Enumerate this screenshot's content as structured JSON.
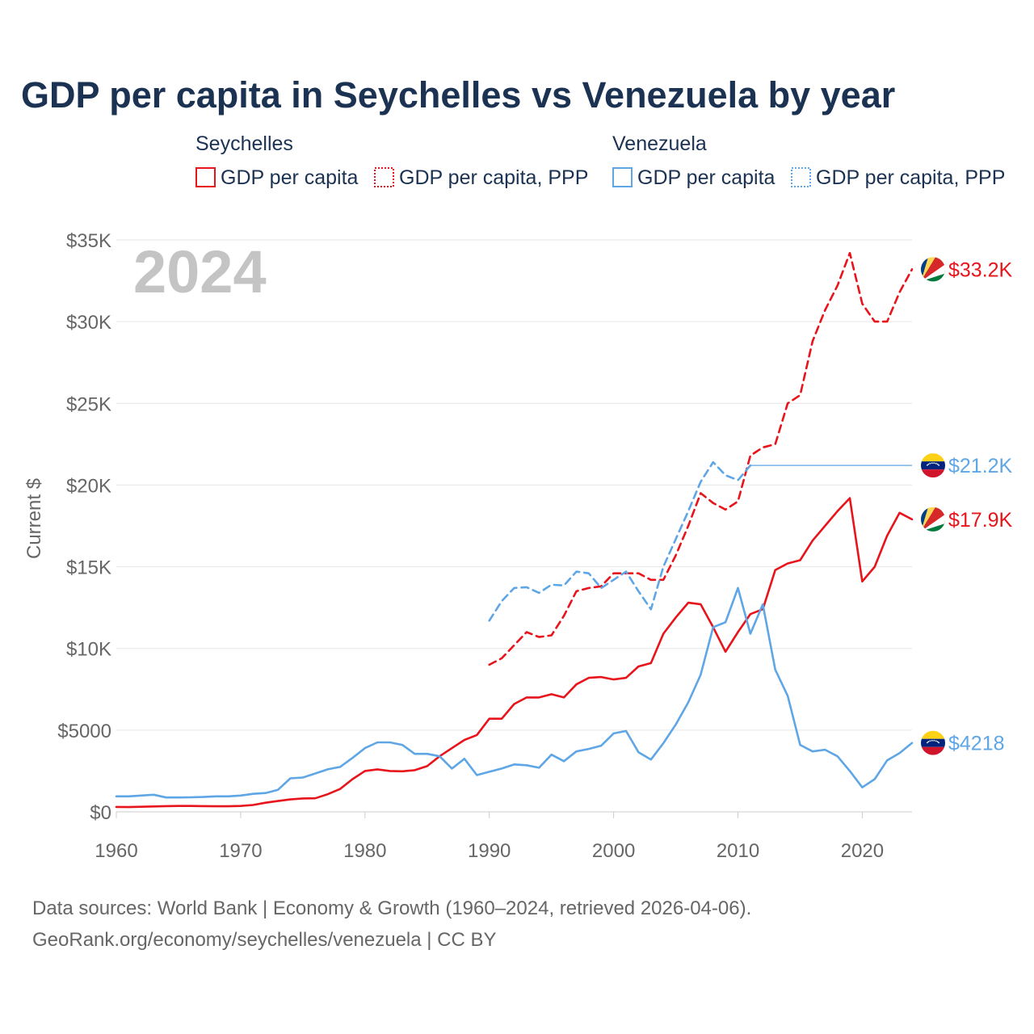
{
  "chart_data": {
    "type": "line",
    "title": "GDP per capita in Seychelles vs Venezuela by year",
    "ylabel": "Current $",
    "xlabel": "",
    "year_stamp": "2024",
    "xlim": [
      1960,
      2024
    ],
    "ylim": [
      0,
      35000
    ],
    "x_ticks": [
      1960,
      1970,
      1980,
      1990,
      2000,
      2010,
      2020
    ],
    "x_tick_labels": [
      "1960",
      "1970",
      "1980",
      "1990",
      "2000",
      "2010",
      "2020"
    ],
    "y_ticks": [
      0,
      5000,
      10000,
      15000,
      20000,
      25000,
      30000,
      35000
    ],
    "y_tick_labels": [
      "$0",
      "$5000",
      "$10K",
      "$15K",
      "$20K",
      "$25K",
      "$30K",
      "$35K"
    ],
    "grid": true,
    "legend": {
      "placement": "top",
      "groups": [
        {
          "name": "Seychelles",
          "entries": [
            "GDP per capita",
            "GDP per capita, PPP"
          ]
        },
        {
          "name": "Venezuela",
          "entries": [
            "GDP per capita",
            "GDP per capita, PPP"
          ]
        }
      ]
    },
    "series": [
      {
        "name": "Seychelles GDP per capita",
        "country": "Seychelles",
        "indicator": "GDP per capita",
        "color": "#e8141b",
        "dash": "solid",
        "end_label": "$17.9K",
        "x": [
          1960,
          1961,
          1962,
          1963,
          1964,
          1965,
          1966,
          1967,
          1968,
          1969,
          1970,
          1971,
          1972,
          1973,
          1974,
          1975,
          1976,
          1977,
          1978,
          1979,
          1980,
          1981,
          1982,
          1983,
          1984,
          1985,
          1986,
          1987,
          1988,
          1989,
          1990,
          1991,
          1992,
          1993,
          1994,
          1995,
          1996,
          1997,
          1998,
          1999,
          2000,
          2001,
          2002,
          2003,
          2004,
          2005,
          2006,
          2007,
          2008,
          2009,
          2010,
          2011,
          2012,
          2013,
          2014,
          2015,
          2016,
          2017,
          2018,
          2019,
          2020,
          2021,
          2022,
          2023,
          2024
        ],
        "values": [
          300,
          290,
          310,
          330,
          350,
          360,
          360,
          350,
          340,
          340,
          360,
          420,
          560,
          660,
          760,
          820,
          830,
          1080,
          1400,
          2000,
          2500,
          2600,
          2500,
          2480,
          2550,
          2800,
          3400,
          3900,
          4400,
          4700,
          5700,
          5700,
          6600,
          7000,
          7000,
          7200,
          7000,
          7800,
          8200,
          8250,
          8100,
          8200,
          8900,
          9100,
          10900,
          11900,
          12800,
          12700,
          11300,
          9800,
          11000,
          12100,
          12400,
          14800,
          15200,
          15400,
          16600,
          17500,
          18400,
          19200,
          14100,
          15000,
          16900,
          18300,
          17900
        ]
      },
      {
        "name": "Seychelles GDP per capita, PPP",
        "country": "Seychelles",
        "indicator": "GDP per capita, PPP",
        "color": "#e8141b",
        "dash": "dashed",
        "end_label": "$33.2K",
        "x": [
          1990,
          1991,
          1992,
          1993,
          1994,
          1995,
          1996,
          1997,
          1998,
          1999,
          2000,
          2001,
          2002,
          2003,
          2004,
          2005,
          2006,
          2007,
          2008,
          2009,
          2010,
          2011,
          2012,
          2013,
          2014,
          2015,
          2016,
          2017,
          2018,
          2019,
          2020,
          2021,
          2022,
          2023,
          2024
        ],
        "values": [
          9000,
          9400,
          10200,
          11000,
          10700,
          10800,
          12000,
          13500,
          13700,
          13800,
          14600,
          14600,
          14600,
          14200,
          14200,
          15700,
          17500,
          19500,
          18900,
          18500,
          19000,
          21800,
          22300,
          22500,
          25000,
          25500,
          28800,
          30700,
          32200,
          34200,
          31100,
          30000,
          30000,
          31800,
          33200
        ]
      },
      {
        "name": "Venezuela GDP per capita",
        "country": "Venezuela",
        "indicator": "GDP per capita",
        "color": "#5ea6e5",
        "dash": "solid",
        "end_label": "$4218",
        "x": [
          1960,
          1961,
          1962,
          1963,
          1964,
          1965,
          1966,
          1967,
          1968,
          1969,
          1970,
          1971,
          1972,
          1973,
          1974,
          1975,
          1976,
          1977,
          1978,
          1979,
          1980,
          1981,
          1982,
          1983,
          1984,
          1985,
          1986,
          1987,
          1988,
          1989,
          1990,
          1991,
          1992,
          1993,
          1994,
          1995,
          1996,
          1997,
          1998,
          1999,
          2000,
          2001,
          2002,
          2003,
          2004,
          2005,
          2006,
          2007,
          2008,
          2009,
          2010,
          2011,
          2012,
          2013,
          2014,
          2015,
          2016,
          2017,
          2018,
          2019,
          2020,
          2021,
          2022,
          2023,
          2024
        ],
        "values": [
          950,
          950,
          1000,
          1050,
          880,
          880,
          890,
          910,
          950,
          950,
          1000,
          1100,
          1150,
          1350,
          2050,
          2100,
          2350,
          2600,
          2750,
          3300,
          3900,
          4250,
          4250,
          4100,
          3550,
          3550,
          3400,
          2650,
          3250,
          2250,
          2450,
          2650,
          2900,
          2850,
          2700,
          3500,
          3100,
          3700,
          3850,
          4050,
          4800,
          4950,
          3650,
          3200,
          4200,
          5350,
          6700,
          8400,
          11300,
          11600,
          13700,
          10900,
          12700,
          8700,
          7100,
          4100,
          3700,
          3800,
          3400,
          2500,
          1500,
          2000,
          3150,
          3600,
          4218
        ]
      },
      {
        "name": "Venezuela GDP per capita, PPP",
        "country": "Venezuela",
        "indicator": "GDP per capita, PPP",
        "color": "#5ea6e5",
        "dash": "dashed",
        "end_label": "$21.2K",
        "x": [
          1990,
          1991,
          1992,
          1993,
          1994,
          1995,
          1996,
          1997,
          1998,
          1999,
          2000,
          2001,
          2002,
          2003,
          2004,
          2005,
          2006,
          2007,
          2008,
          2009,
          2010,
          2011
        ],
        "values": [
          11700,
          12900,
          13700,
          13750,
          13400,
          13900,
          13850,
          14700,
          14600,
          13700,
          14200,
          14700,
          13500,
          12400,
          15000,
          16700,
          18400,
          20200,
          21400,
          20600,
          20300,
          21200
        ],
        "carry_forward_to": 2024
      }
    ],
    "flags": [
      {
        "country": "Seychelles",
        "attached_to": "Seychelles GDP per capita, PPP"
      },
      {
        "country": "Venezuela",
        "attached_to": "Venezuela GDP per capita, PPP"
      },
      {
        "country": "Seychelles",
        "attached_to": "Seychelles GDP per capita"
      },
      {
        "country": "Venezuela",
        "attached_to": "Venezuela GDP per capita"
      }
    ],
    "colors": {
      "seychelles": "#e8141b",
      "venezuela": "#5ea6e5",
      "title": "#1b3252",
      "grid": "#e6e6e6",
      "tick": "#666666",
      "year_stamp": "#c4c4c4"
    }
  },
  "source": {
    "line1": "Data sources: World Bank | Economy & Growth (1960–2024, retrieved 2026-04-06).",
    "line2": "GeoRank.org/economy/seychelles/venezuela | CC BY"
  }
}
